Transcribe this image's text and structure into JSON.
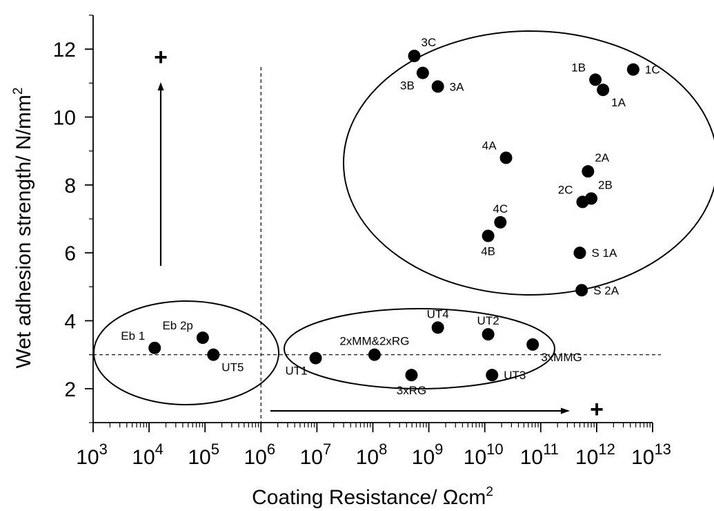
{
  "chart_data": {
    "type": "scatter",
    "x_scale": "log10",
    "xlim": [
      1000,
      10000000000000.0
    ],
    "ylim": [
      1,
      13
    ],
    "xlabel": "Coating Resistance/ Ωcm",
    "xlabel_sup": "2",
    "ylabel": "Wet adhesion strength/ N/mm",
    "ylabel_sup": "2",
    "x_major_ticks": [
      {
        "base": "10",
        "exp": "3",
        "value": 1000
      },
      {
        "base": "10",
        "exp": "4",
        "value": 10000
      },
      {
        "base": "10",
        "exp": "5",
        "value": 100000
      },
      {
        "base": "10",
        "exp": "6",
        "value": 1000000
      },
      {
        "base": "10",
        "exp": "7",
        "value": 10000000
      },
      {
        "base": "10",
        "exp": "8",
        "value": 100000000
      },
      {
        "base": "10",
        "exp": "9",
        "value": 1000000000
      },
      {
        "base": "10",
        "exp": "10",
        "value": 10000000000
      },
      {
        "base": "10",
        "exp": "11",
        "value": 100000000000
      },
      {
        "base": "10",
        "exp": "12",
        "value": 1000000000000
      },
      {
        "base": "10",
        "exp": "13",
        "value": 10000000000000
      }
    ],
    "y_major_ticks": [
      {
        "label": "2",
        "value": 2
      },
      {
        "label": "4",
        "value": 4
      },
      {
        "label": "6",
        "value": 6
      },
      {
        "label": "8",
        "value": 8
      },
      {
        "label": "10",
        "value": 10
      },
      {
        "label": "12",
        "value": 12
      }
    ],
    "points": [
      {
        "label": "Eb 1",
        "x": 12600,
        "y": 3.2,
        "label_pos": "upper-left"
      },
      {
        "label": "Eb 2p",
        "x": 91000,
        "y": 3.5,
        "label_pos": "upper-left"
      },
      {
        "label": "UT5",
        "x": 141000,
        "y": 3.0,
        "label_pos": "lower-right"
      },
      {
        "label": "UT1",
        "x": 9500000,
        "y": 2.9,
        "label_pos": "lower-left"
      },
      {
        "label": "2xMM&2xRG",
        "x": 107000000,
        "y": 3.0,
        "label_pos": "upper"
      },
      {
        "label": "3xRG",
        "x": 490000000,
        "y": 2.4,
        "label_pos": "lower"
      },
      {
        "label": "UT4",
        "x": 1450000000,
        "y": 3.8,
        "label_pos": "upper"
      },
      {
        "label": "UT2",
        "x": 11500000000,
        "y": 3.6,
        "label_pos": "upper"
      },
      {
        "label": "UT3",
        "x": 13500000000,
        "y": 2.4,
        "label_pos": "right"
      },
      {
        "label": "3xMMG",
        "x": 72000000000,
        "y": 3.3,
        "label_pos": "lower-right"
      },
      {
        "label": "3C",
        "x": 550000000,
        "y": 11.8,
        "label_pos": "upper-right"
      },
      {
        "label": "3B",
        "x": 780000000,
        "y": 11.3,
        "label_pos": "lower-left"
      },
      {
        "label": "3A",
        "x": 1450000000,
        "y": 10.9,
        "label_pos": "right"
      },
      {
        "label": "1B",
        "x": 950000000000,
        "y": 11.1,
        "label_pos": "upper-left"
      },
      {
        "label": "1A",
        "x": 1300000000000,
        "y": 10.8,
        "label_pos": "lower-right"
      },
      {
        "label": "1C",
        "x": 4500000000000,
        "y": 11.4,
        "label_pos": "right"
      },
      {
        "label": "4A",
        "x": 24000000000,
        "y": 8.8,
        "label_pos": "upper-left"
      },
      {
        "label": "2A",
        "x": 700000000000,
        "y": 8.4,
        "label_pos": "upper-right"
      },
      {
        "label": "2C",
        "x": 560000000000,
        "y": 7.5,
        "label_pos": "upper-left"
      },
      {
        "label": "2B",
        "x": 800000000000,
        "y": 7.6,
        "label_pos": "upper-right"
      },
      {
        "label": "4C",
        "x": 19000000000,
        "y": 6.9,
        "label_pos": "upper"
      },
      {
        "label": "4B",
        "x": 11500000000,
        "y": 6.5,
        "label_pos": "lower"
      },
      {
        "label": "S 1A",
        "x": 500000000000,
        "y": 6.0,
        "label_pos": "right"
      },
      {
        "label": "S 2A",
        "x": 540000000000,
        "y": 4.9,
        "label_pos": "right"
      }
    ],
    "reference_lines": {
      "vertical_x": 1000000,
      "horizontal_y": 3.0,
      "style": "dashed"
    },
    "arrows": [
      {
        "direction": "up",
        "plus": "+"
      },
      {
        "direction": "right",
        "plus": "+"
      }
    ],
    "grouping_ellipses": 3,
    "grid": false,
    "legend": "none"
  }
}
